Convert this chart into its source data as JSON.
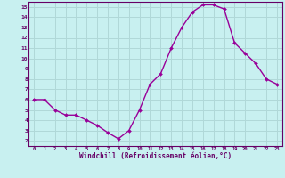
{
  "x": [
    0,
    1,
    2,
    3,
    4,
    5,
    6,
    7,
    8,
    9,
    10,
    11,
    12,
    13,
    14,
    15,
    16,
    17,
    18,
    19,
    20,
    21,
    22,
    23
  ],
  "y": [
    6,
    6,
    5,
    4.5,
    4.5,
    4,
    3.5,
    2.8,
    2.2,
    3,
    5,
    7.5,
    8.5,
    11,
    13,
    14.5,
    15.2,
    15.2,
    14.8,
    11.5,
    10.5,
    9.5,
    8,
    7.5
  ],
  "line_color": "#990099",
  "marker_color": "#990099",
  "bg_color": "#c8f0f0",
  "grid_color": "#b0d8d8",
  "axis_label_color": "#660066",
  "tick_color": "#660066",
  "xlabel": "Windchill (Refroidissement éolien,°C)",
  "xlim": [
    -0.5,
    23.5
  ],
  "ylim": [
    1.5,
    15.5
  ],
  "yticks": [
    2,
    3,
    4,
    5,
    6,
    7,
    8,
    9,
    10,
    11,
    12,
    13,
    14,
    15
  ],
  "xticks": [
    0,
    1,
    2,
    3,
    4,
    5,
    6,
    7,
    8,
    9,
    10,
    11,
    12,
    13,
    14,
    15,
    16,
    17,
    18,
    19,
    20,
    21,
    22,
    23
  ]
}
